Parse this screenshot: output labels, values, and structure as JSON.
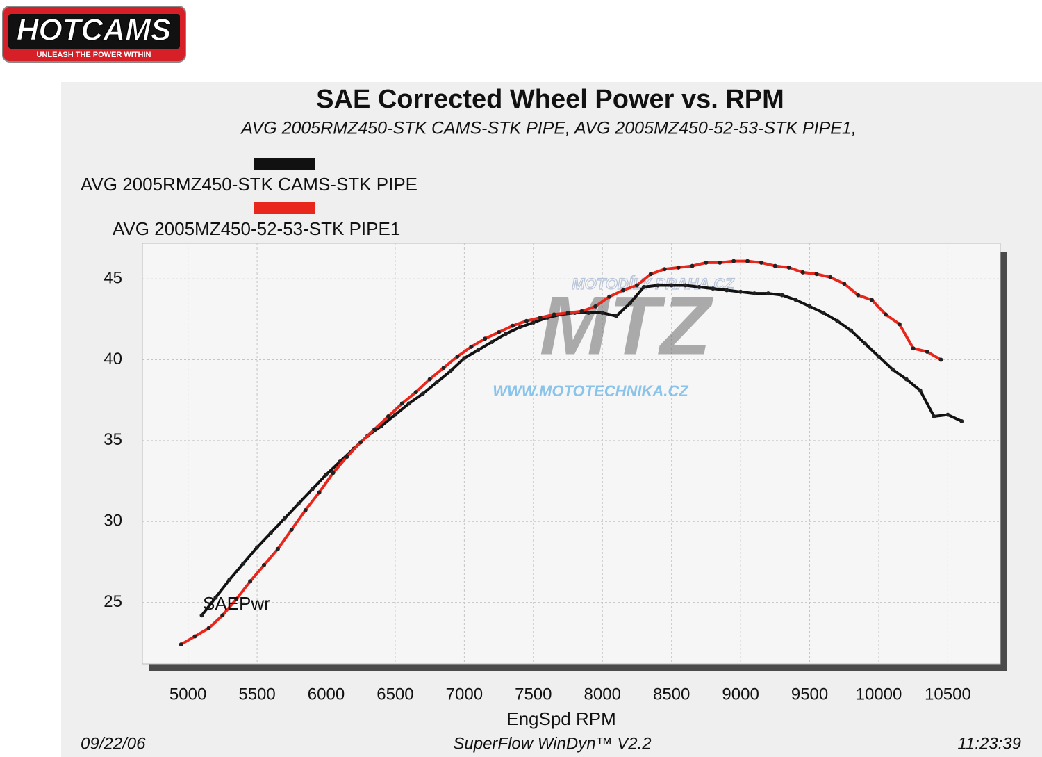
{
  "logo": {
    "brand": "HOTCAMS",
    "tagline": "UNLEASH THE POWER WITHIN"
  },
  "watermark": {
    "top": "MOTODÍLY PRAHA.CZ",
    "mark": "MTZ",
    "url": "WWW.MOTOTECHNIKA.CZ"
  },
  "chart_data": {
    "type": "line",
    "title": "SAE Corrected Wheel Power vs. RPM",
    "subtitle": "AVG 2005RMZ450-STK CAMS-STK PIPE, AVG 2005MZ450-52-53-STK PIPE1,",
    "x_label": "EngSpd  RPM",
    "annotation": "SAEPwr",
    "footer": {
      "date": "09/22/06",
      "software": "SuperFlow WinDyn™ V2.2",
      "time": "11:23:39"
    },
    "xlim": [
      4670,
      10880
    ],
    "ylim": [
      21.2,
      47.2
    ],
    "xticks": [
      5000,
      5500,
      6000,
      6500,
      7000,
      7500,
      8000,
      8500,
      9000,
      9500,
      10000,
      10500
    ],
    "yticks": [
      25,
      30,
      35,
      40,
      45
    ],
    "grid": true,
    "series": [
      {
        "name": "AVG 2005RMZ450-STK CAMS-STK PIPE",
        "color": "#111111",
        "x": [
          5100,
          5200,
          5300,
          5400,
          5500,
          5600,
          5700,
          5800,
          5900,
          6000,
          6100,
          6200,
          6300,
          6400,
          6500,
          6600,
          6700,
          6800,
          6900,
          7000,
          7100,
          7200,
          7300,
          7400,
          7500,
          7600,
          7700,
          7800,
          7900,
          8000,
          8100,
          8200,
          8300,
          8400,
          8500,
          8600,
          8700,
          8800,
          8900,
          9000,
          9100,
          9200,
          9300,
          9400,
          9500,
          9600,
          9700,
          9800,
          9900,
          10000,
          10100,
          10200,
          10300,
          10400,
          10500,
          10600
        ],
        "values": [
          24.2,
          25.3,
          26.4,
          27.4,
          28.4,
          29.3,
          30.2,
          31.1,
          32.0,
          32.9,
          33.7,
          34.5,
          35.3,
          35.9,
          36.6,
          37.3,
          37.9,
          38.6,
          39.3,
          40.1,
          40.6,
          41.1,
          41.6,
          42.0,
          42.3,
          42.6,
          42.8,
          42.9,
          42.9,
          42.9,
          42.7,
          43.5,
          44.5,
          44.6,
          44.6,
          44.6,
          44.5,
          44.4,
          44.3,
          44.2,
          44.1,
          44.1,
          44.0,
          43.7,
          43.3,
          42.9,
          42.4,
          41.8,
          41.0,
          40.2,
          39.4,
          38.8,
          38.1,
          36.5,
          36.6,
          36.2
        ]
      },
      {
        "name": "AVG 2005MZ450-52-53-STK PIPE1",
        "color": "#e8261c",
        "x": [
          4950,
          5050,
          5150,
          5250,
          5350,
          5450,
          5550,
          5650,
          5750,
          5850,
          5950,
          6050,
          6150,
          6250,
          6350,
          6450,
          6550,
          6650,
          6750,
          6850,
          6950,
          7050,
          7150,
          7250,
          7350,
          7450,
          7550,
          7650,
          7750,
          7850,
          7950,
          8050,
          8150,
          8250,
          8350,
          8450,
          8550,
          8650,
          8750,
          8850,
          8950,
          9050,
          9150,
          9250,
          9350,
          9450,
          9550,
          9650,
          9750,
          9850,
          9950,
          10050,
          10150,
          10250,
          10350,
          10450
        ],
        "values": [
          22.4,
          22.9,
          23.4,
          24.2,
          25.2,
          26.3,
          27.3,
          28.3,
          29.5,
          30.7,
          31.8,
          33.0,
          34.0,
          34.9,
          35.7,
          36.5,
          37.3,
          38.0,
          38.8,
          39.5,
          40.2,
          40.8,
          41.3,
          41.7,
          42.1,
          42.4,
          42.6,
          42.8,
          42.9,
          43.0,
          43.3,
          43.9,
          44.3,
          44.6,
          45.3,
          45.6,
          45.7,
          45.8,
          46.0,
          46.0,
          46.1,
          46.1,
          46.0,
          45.8,
          45.7,
          45.4,
          45.3,
          45.1,
          44.7,
          44.0,
          43.7,
          42.8,
          42.2,
          40.7,
          40.5,
          40.0
        ]
      }
    ]
  }
}
